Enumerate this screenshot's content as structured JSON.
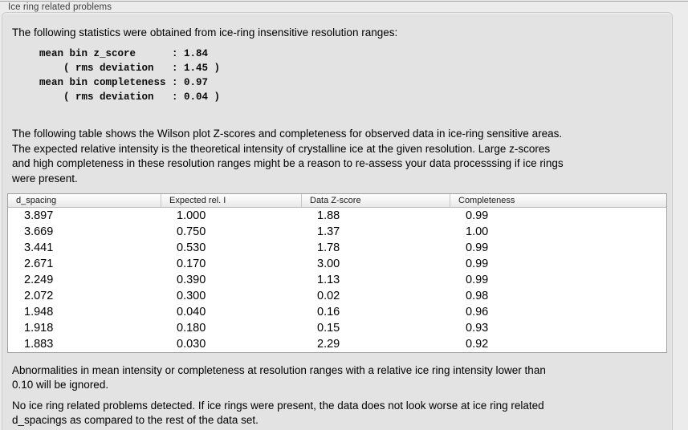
{
  "section": {
    "title": "Ice ring related problems"
  },
  "intro": {
    "text": "The following statistics were obtained from ice-ring insensitive resolution ranges:"
  },
  "stats": {
    "block": "mean bin z_score      : 1.84\n    ( rms deviation   : 1.45 )\nmean bin completeness : 0.97\n    ( rms deviation   : 0.04 )",
    "mean_bin_z_score": "1.84",
    "z_score_rms_deviation": "1.45",
    "mean_bin_completeness": "0.97",
    "completeness_rms_deviation": "0.04"
  },
  "description": {
    "text": "The following table shows the Wilson plot Z-scores and completeness for observed data in ice-ring sensitive areas.\nThe expected relative intensity is the theoretical intensity of crystalline ice at the given resolution. Large z-scores\nand high completeness in these resolution ranges might be a reason to re-assess your data processsing if ice rings\nwere present."
  },
  "table": {
    "columns": [
      "d_spacing",
      "Expected rel. I",
      "Data Z-score",
      "Completeness"
    ],
    "rows": [
      [
        "3.897",
        "1.000",
        "1.88",
        "0.99"
      ],
      [
        "3.669",
        "0.750",
        "1.37",
        "1.00"
      ],
      [
        "3.441",
        "0.530",
        "1.78",
        "0.99"
      ],
      [
        "2.671",
        "0.170",
        "3.00",
        "0.99"
      ],
      [
        "2.249",
        "0.390",
        "1.13",
        "0.99"
      ],
      [
        "2.072",
        "0.300",
        "0.02",
        "0.98"
      ],
      [
        "1.948",
        "0.040",
        "0.16",
        "0.96"
      ],
      [
        "1.918",
        "0.180",
        "0.15",
        "0.93"
      ],
      [
        "1.883",
        "0.030",
        "2.29",
        "0.92"
      ]
    ]
  },
  "notes": {
    "ignore_threshold": "Abnormalities in mean intensity or completeness at resolution ranges with a relative ice ring intensity lower than\n0.10 will be ignored.",
    "conclusion": "No ice ring related problems detected. If ice rings were present, the data does not look worse at ice ring related\nd_spacings as compared to the rest of the data set."
  }
}
